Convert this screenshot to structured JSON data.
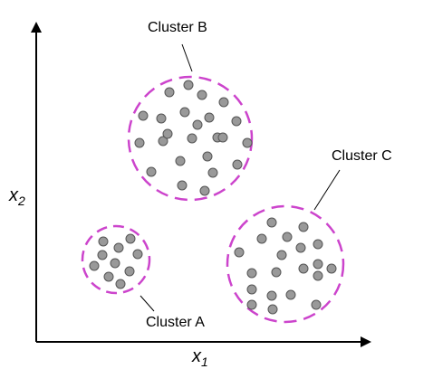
{
  "axes": {
    "x_label": "x",
    "x_subscript": "1",
    "y_label": "x",
    "y_subscript": "2"
  },
  "colors": {
    "axis": "#000000",
    "cluster_outline": "#cc44cc",
    "point_fill": "#999999",
    "point_stroke": "#555555",
    "leader": "#000000"
  },
  "clusters": [
    {
      "id": "A",
      "label": "Cluster A",
      "point_count": 10
    },
    {
      "id": "B",
      "label": "Cluster B",
      "point_count": 24
    },
    {
      "id": "C",
      "label": "Cluster C",
      "point_count": 20
    }
  ]
}
